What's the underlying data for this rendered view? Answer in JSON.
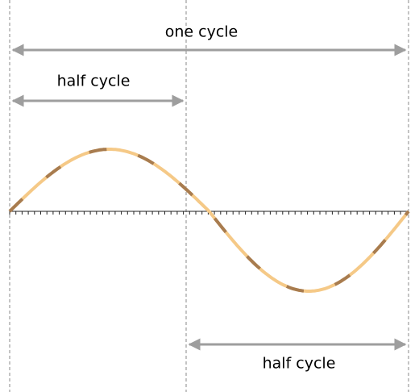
{
  "annotations": {
    "full_cycle": "one cycle",
    "first_half": "half cycle",
    "second_half": "half cycle"
  }
}
